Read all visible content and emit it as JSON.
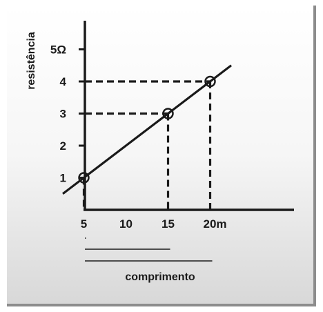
{
  "chart_data": {
    "type": "line",
    "title": "",
    "xlabel": "comprimento",
    "ylabel": "resistência",
    "x_unit": "m",
    "y_unit": "Ω",
    "xlim": [
      0,
      24
    ],
    "ylim": [
      0,
      5.5
    ],
    "x_ticks": [
      {
        "value": 5,
        "label": "5"
      },
      {
        "value": 10,
        "label": "10"
      },
      {
        "value": 15,
        "label": "15"
      },
      {
        "value": 20,
        "label": "20m"
      }
    ],
    "y_ticks": [
      {
        "value": 1,
        "label": "1"
      },
      {
        "value": 2,
        "label": "2"
      },
      {
        "value": 3,
        "label": "3"
      },
      {
        "value": 4,
        "label": "4"
      },
      {
        "value": 5,
        "label": "5Ω"
      }
    ],
    "series": [
      {
        "values": [
          {
            "x": 5,
            "y": 1
          },
          {
            "x": 15,
            "y": 3
          },
          {
            "x": 20,
            "y": 4
          }
        ],
        "line_extent_x": [
          2.5,
          22.5
        ],
        "color": "#1a1a1a"
      }
    ],
    "marked_points": [
      {
        "x": 5,
        "y": 1
      },
      {
        "x": 15,
        "y": 3
      },
      {
        "x": 20,
        "y": 4
      }
    ],
    "length_brackets": [
      5,
      15,
      20
    ],
    "grid": false,
    "legend": "none"
  }
}
